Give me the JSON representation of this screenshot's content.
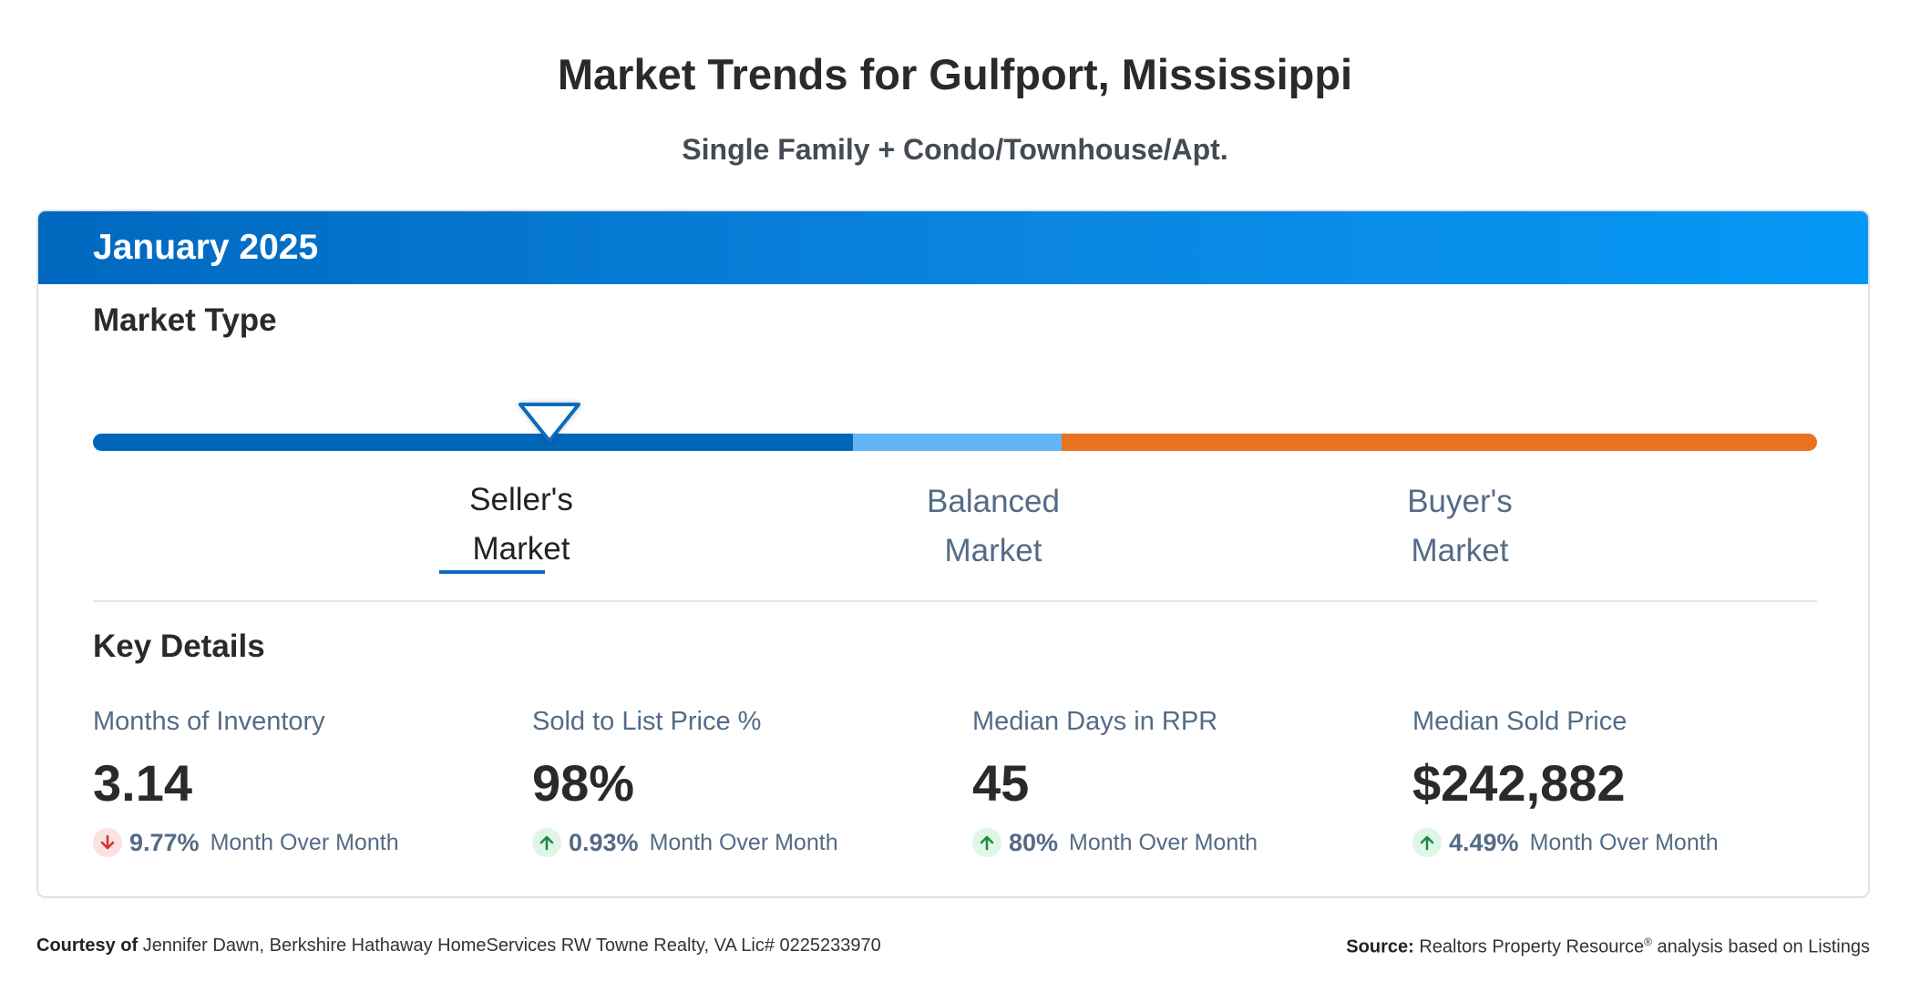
{
  "page": {
    "title": "Market Trends for Gulfport, Mississippi",
    "subtitle": "Single Family + Condo/Townhouse/Apt."
  },
  "card": {
    "period": "January 2025",
    "market_type": {
      "heading": "Market Type",
      "current": "seller",
      "marker_position": 0.265,
      "labels": {
        "seller": [
          "Seller's",
          "Market"
        ],
        "balanced": [
          "Balanced",
          "Market"
        ],
        "buyer": [
          "Buyer's",
          "Market"
        ]
      },
      "colors": {
        "seller": "#0066b8",
        "balanced": "#64b5f6",
        "buyer": "#e8721d"
      }
    },
    "key_details": {
      "heading": "Key Details",
      "metrics": [
        {
          "label": "Months of Inventory",
          "value": "3.14",
          "change": "9.77%",
          "direction": "down",
          "change_text": "Month Over Month"
        },
        {
          "label": "Sold to List Price %",
          "value": "98%",
          "change": "0.93%",
          "direction": "up",
          "change_text": "Month Over Month"
        },
        {
          "label": "Median Days in RPR",
          "value": "45",
          "change": "80%",
          "direction": "up",
          "change_text": "Month Over Month"
        },
        {
          "label": "Median Sold Price",
          "value": "$242,882",
          "change": "4.49%",
          "direction": "up",
          "change_text": "Month Over Month"
        }
      ]
    }
  },
  "footer": {
    "courtesy_label": "Courtesy of",
    "courtesy_text": "Jennifer Dawn, Berkshire Hathaway HomeServices RW Towne Realty, VA Lic# 0225233970",
    "source_label": "Source:",
    "source_text": "Realtors Property Resource",
    "source_mark": "®",
    "source_suffix": "analysis based on Listings"
  },
  "icons": {
    "up": "arrow-up-icon",
    "down": "arrow-down-icon",
    "marker": "triangle-marker-icon"
  }
}
